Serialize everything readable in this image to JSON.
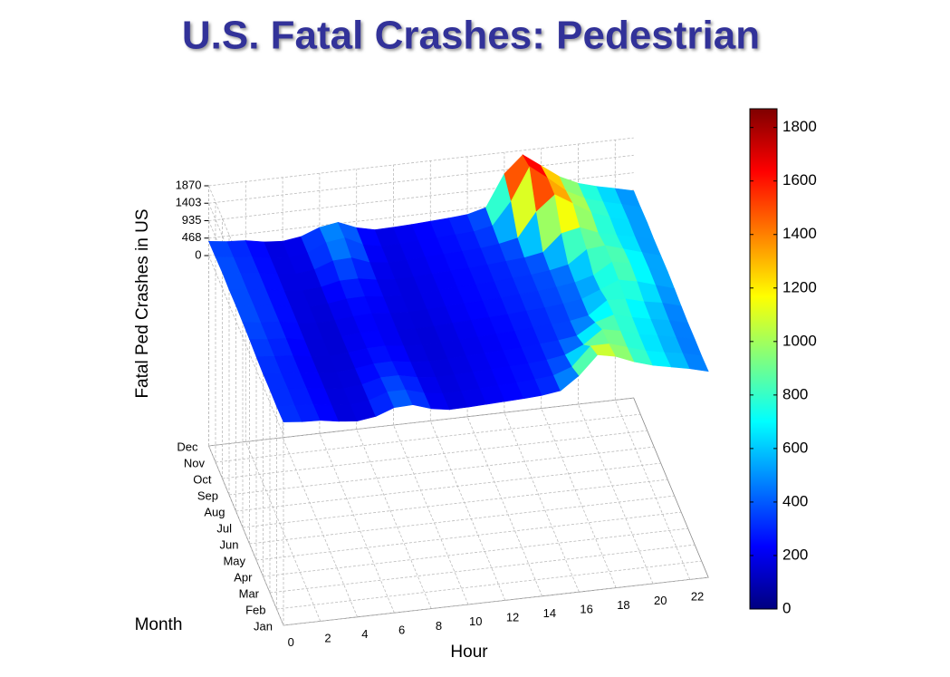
{
  "chart_data": {
    "type": "surface",
    "title": "U.S. Fatal Crashes: Pedestrian",
    "zlabel": "Fatal Ped Crashes in US",
    "xlabel": "Hour",
    "ylabel": "Month",
    "x": [
      0,
      1,
      2,
      3,
      4,
      5,
      6,
      7,
      8,
      9,
      10,
      11,
      12,
      13,
      14,
      15,
      16,
      17,
      18,
      19,
      20,
      21,
      22,
      23
    ],
    "xticks": [
      0,
      2,
      4,
      6,
      8,
      10,
      12,
      14,
      16,
      18,
      20,
      22
    ],
    "categories": [
      "Jan",
      "Feb",
      "Mar",
      "Apr",
      "May",
      "Jun",
      "Jul",
      "Aug",
      "Sep",
      "Oct",
      "Nov",
      "Dec"
    ],
    "z": [
      [
        350,
        300,
        280,
        200,
        150,
        220,
        400,
        420,
        260,
        180,
        190,
        210,
        230,
        250,
        280,
        350,
        700,
        1200,
        1100,
        900,
        750,
        650,
        550,
        420
      ],
      [
        330,
        290,
        270,
        190,
        150,
        210,
        380,
        380,
        240,
        170,
        180,
        200,
        220,
        240,
        270,
        320,
        500,
        1000,
        1000,
        850,
        700,
        600,
        520,
        400
      ],
      [
        340,
        300,
        270,
        190,
        150,
        200,
        330,
        330,
        220,
        170,
        180,
        200,
        220,
        240,
        260,
        300,
        380,
        600,
        950,
        850,
        700,
        620,
        520,
        410
      ],
      [
        330,
        290,
        260,
        180,
        140,
        190,
        260,
        270,
        200,
        160,
        170,
        190,
        210,
        230,
        250,
        290,
        330,
        400,
        700,
        850,
        720,
        620,
        530,
        400
      ],
      [
        350,
        300,
        270,
        180,
        140,
        180,
        240,
        250,
        190,
        160,
        170,
        190,
        210,
        230,
        250,
        290,
        320,
        360,
        450,
        800,
        780,
        650,
        560,
        420
      ],
      [
        380,
        320,
        290,
        190,
        140,
        170,
        220,
        230,
        180,
        160,
        170,
        200,
        220,
        240,
        260,
        300,
        330,
        380,
        450,
        650,
        850,
        750,
        600,
        450
      ],
      [
        400,
        330,
        300,
        200,
        150,
        170,
        220,
        240,
        190,
        170,
        180,
        210,
        230,
        250,
        270,
        310,
        340,
        390,
        460,
        600,
        900,
        800,
        620,
        470
      ],
      [
        410,
        340,
        300,
        200,
        150,
        180,
        250,
        260,
        200,
        170,
        180,
        210,
        230,
        250,
        270,
        310,
        340,
        400,
        500,
        850,
        900,
        750,
        600,
        460
      ],
      [
        400,
        330,
        300,
        200,
        150,
        190,
        300,
        300,
        210,
        170,
        180,
        210,
        230,
        250,
        280,
        320,
        360,
        450,
        900,
        1000,
        800,
        680,
        580,
        450
      ],
      [
        420,
        340,
        300,
        210,
        160,
        220,
        400,
        420,
        240,
        180,
        190,
        220,
        240,
        260,
        290,
        350,
        450,
        1100,
        1500,
        1200,
        900,
        720,
        600,
        470
      ],
      [
        400,
        330,
        290,
        200,
        160,
        230,
        450,
        520,
        280,
        180,
        190,
        220,
        240,
        270,
        300,
        400,
        1000,
        1870,
        1500,
        1100,
        850,
        700,
        580,
        450
      ],
      [
        380,
        320,
        290,
        200,
        160,
        230,
        420,
        500,
        300,
        190,
        200,
        220,
        250,
        280,
        320,
        450,
        1300,
        1750,
        1400,
        1050,
        820,
        680,
        570,
        450
      ]
    ],
    "zlim": [
      0,
      1870
    ],
    "zticks": [
      0,
      468,
      935,
      1403,
      1870
    ],
    "grid": true,
    "colormap": [
      "#00007f",
      "#0000ff",
      "#007fff",
      "#00ffff",
      "#7fff7f",
      "#ffff00",
      "#ff7f00",
      "#ff0000",
      "#7f0000"
    ],
    "colorbar": {
      "lim": [
        0,
        1870
      ],
      "ticks": [
        0,
        200,
        400,
        600,
        800,
        1000,
        1200,
        1400,
        1600,
        1800
      ]
    }
  }
}
